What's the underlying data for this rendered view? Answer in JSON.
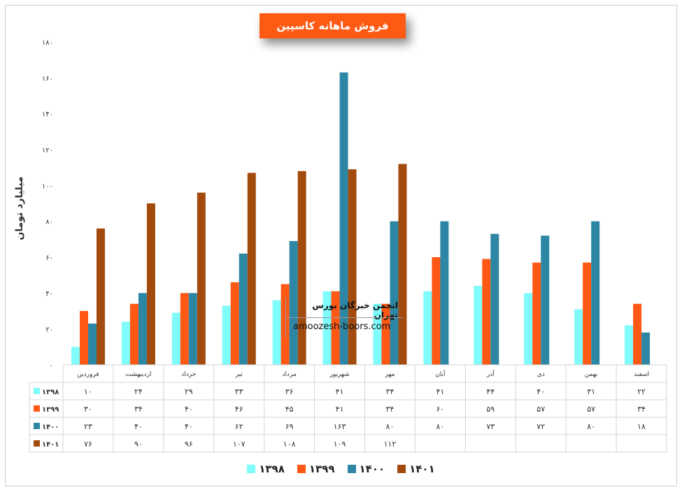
{
  "chart_data": {
    "type": "bar",
    "title": "فروش ماهانه کاسپین",
    "ylabel": "میلیارد تومان",
    "ylim": [
      0,
      180
    ],
    "yticks": [
      "۰",
      "۲۰",
      "۴۰",
      "۶۰",
      "۸۰",
      "۱۰۰",
      "۱۲۰",
      "۱۴۰",
      "۱۶۰",
      "۱۸۰"
    ],
    "categories": [
      "فروردین",
      "اردیبهشت",
      "خرداد",
      "تیر",
      "مرداد",
      "شهریور",
      "مهر",
      "آبان",
      "آذر",
      "دی",
      "بهمن",
      "اسفند"
    ],
    "series": [
      {
        "name": "۱۳۹۸",
        "color": "#7ffcfc",
        "values": [
          10,
          24,
          29,
          33,
          36,
          41,
          34,
          41,
          44,
          40,
          31,
          22
        ],
        "labels": [
          "۱۰",
          "۲۴",
          "۲۹",
          "۳۳",
          "۳۶",
          "۴۱",
          "۳۴",
          "۴۱",
          "۴۴",
          "۴۰",
          "۳۱",
          "۲۲"
        ]
      },
      {
        "name": "۱۳۹۹",
        "color": "#ff5714",
        "values": [
          30,
          34,
          40,
          46,
          45,
          41,
          34,
          60,
          59,
          57,
          57,
          34
        ],
        "labels": [
          "۳۰",
          "۳۴",
          "۴۰",
          "۴۶",
          "۴۵",
          "۴۱",
          "۳۴",
          "۶۰",
          "۵۹",
          "۵۷",
          "۵۷",
          "۳۴"
        ]
      },
      {
        "name": "۱۴۰۰",
        "color": "#2e86a5",
        "values": [
          23,
          40,
          40,
          62,
          69,
          163,
          80,
          80,
          73,
          72,
          80,
          18
        ],
        "labels": [
          "۲۳",
          "۴۰",
          "۴۰",
          "۶۲",
          "۶۹",
          "۱۶۳",
          "۸۰",
          "۸۰",
          "۷۳",
          "۷۲",
          "۸۰",
          "۱۸"
        ]
      },
      {
        "name": "۱۴۰۱",
        "color": "#a34b0f",
        "values": [
          76,
          90,
          96,
          107,
          108,
          109,
          112,
          null,
          null,
          null,
          null,
          null
        ],
        "labels": [
          "۷۶",
          "۹۰",
          "۹۶",
          "۱۰۷",
          "۱۰۸",
          "۱۰۹",
          "۱۱۲",
          "",
          "",
          "",
          "",
          ""
        ]
      }
    ],
    "legend_position": "bottom",
    "grid": false,
    "data_table": true
  },
  "watermark": {
    "line1": "انجمن خبرگان بورس تهران",
    "line2": "amoozesh-boors.com"
  }
}
